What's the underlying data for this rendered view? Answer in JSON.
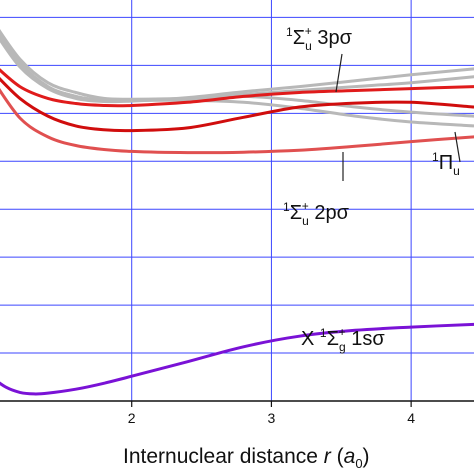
{
  "chart_data": {
    "type": "line",
    "title": "",
    "xlabel": "Internuclear distance r (a₀)",
    "xlabel_parts": {
      "main": "Internuclear distance ",
      "var": "r",
      "open": " (",
      "unit": "a",
      "unit_sub": "0",
      "close": ")"
    },
    "ylabel": "",
    "xlim": [
      1.0,
      4.45
    ],
    "ylim": [
      0.0,
      1.0
    ],
    "x_ticks": [
      2,
      3,
      4
    ],
    "x_tick_labels": [
      "2",
      "3",
      "4"
    ],
    "grid": true,
    "grid_color": "#3b46ff",
    "y_grid": [
      0.0,
      0.122,
      0.244,
      0.366,
      0.488,
      0.61,
      0.732,
      0.854,
      0.976
    ],
    "series": [
      {
        "id": "gray1",
        "color": "#b8b8b8",
        "width": 3,
        "x": [
          1.0,
          1.2,
          1.4,
          1.6,
          1.8,
          2.0,
          2.4,
          2.8,
          3.2,
          3.6,
          4.0,
          4.45
        ],
        "y": [
          0.97,
          0.86,
          0.8,
          0.775,
          0.765,
          0.765,
          0.77,
          0.78,
          0.79,
          0.8,
          0.81,
          0.825
        ]
      },
      {
        "id": "gray2",
        "color": "#b8b8b8",
        "width": 3,
        "x": [
          1.0,
          1.2,
          1.4,
          1.6,
          1.8,
          2.0,
          2.4,
          2.8,
          3.2,
          3.6,
          4.0,
          4.45
        ],
        "y": [
          0.95,
          0.85,
          0.795,
          0.77,
          0.762,
          0.763,
          0.772,
          0.787,
          0.8,
          0.815,
          0.83,
          0.845
        ]
      },
      {
        "id": "gray3",
        "color": "#b8b8b8",
        "width": 3,
        "x": [
          1.0,
          1.2,
          1.4,
          1.6,
          1.8,
          2.0,
          2.4,
          2.8,
          3.2,
          3.6,
          4.0,
          4.45
        ],
        "y": [
          0.97,
          0.87,
          0.81,
          0.785,
          0.77,
          0.768,
          0.77,
          0.775,
          0.765,
          0.748,
          0.735,
          0.725
        ]
      },
      {
        "id": "gray4",
        "color": "#b8b8b8",
        "width": 3,
        "x": [
          1.0,
          1.2,
          1.4,
          1.6,
          1.8,
          2.0,
          2.4,
          2.8,
          3.2,
          3.6,
          4.0,
          4.45
        ],
        "y": [
          0.96,
          0.86,
          0.8,
          0.775,
          0.765,
          0.765,
          0.765,
          0.76,
          0.745,
          0.725,
          0.71,
          0.7
        ]
      },
      {
        "id": "red-upper",
        "color": "#e01b1b",
        "width": 3,
        "x": [
          1.0,
          1.2,
          1.4,
          1.6,
          1.8,
          2.0,
          2.4,
          2.8,
          3.2,
          3.6,
          4.0,
          4.45
        ],
        "y": [
          0.86,
          0.8,
          0.77,
          0.757,
          0.752,
          0.752,
          0.76,
          0.775,
          0.785,
          0.79,
          0.795,
          0.8
        ]
      },
      {
        "id": "red-middle",
        "color": "#d00d0d",
        "width": 3,
        "x": [
          1.0,
          1.2,
          1.4,
          1.6,
          1.8,
          2.0,
          2.4,
          2.8,
          3.2,
          3.6,
          4.0,
          4.45
        ],
        "y": [
          0.84,
          0.77,
          0.725,
          0.7,
          0.69,
          0.688,
          0.695,
          0.722,
          0.748,
          0.758,
          0.76,
          0.748
        ]
      },
      {
        "id": "red-lower",
        "color": "#e05050",
        "width": 3,
        "x": [
          1.0,
          1.2,
          1.4,
          1.6,
          1.8,
          2.0,
          2.4,
          2.8,
          3.2,
          3.6,
          4.0,
          4.45
        ],
        "y": [
          0.82,
          0.72,
          0.672,
          0.65,
          0.64,
          0.635,
          0.632,
          0.633,
          0.638,
          0.648,
          0.66,
          0.672
        ]
      },
      {
        "id": "ground-state",
        "color": "#7a12d6",
        "width": 3,
        "x": [
          1.0,
          1.1,
          1.2,
          1.3,
          1.4,
          1.6,
          1.8,
          2.0,
          2.4,
          2.8,
          3.2,
          3.6,
          4.0,
          4.45
        ],
        "y": [
          0.06,
          0.035,
          0.022,
          0.018,
          0.02,
          0.03,
          0.045,
          0.063,
          0.1,
          0.138,
          0.165,
          0.18,
          0.188,
          0.195
        ]
      }
    ],
    "annotations": [
      {
        "id": "label-3psigma",
        "sup": "1",
        "sym": "Σ",
        "sub": "u",
        "sup2": "+",
        "text": " 3pσ"
      },
      {
        "id": "label-2psigma",
        "sup": "1",
        "sym": "Σ",
        "sub": "u",
        "sup2": "+",
        "text": " 2pσ"
      },
      {
        "id": "label-pi",
        "sup": "1",
        "sym": "Π",
        "sub": "u",
        "sup2": "",
        "text": ""
      },
      {
        "id": "label-ground",
        "prefix": "X ",
        "sup": "1",
        "sym": "Σ",
        "sub": "g",
        "sup2": "+",
        "text": " 1sσ"
      }
    ]
  }
}
